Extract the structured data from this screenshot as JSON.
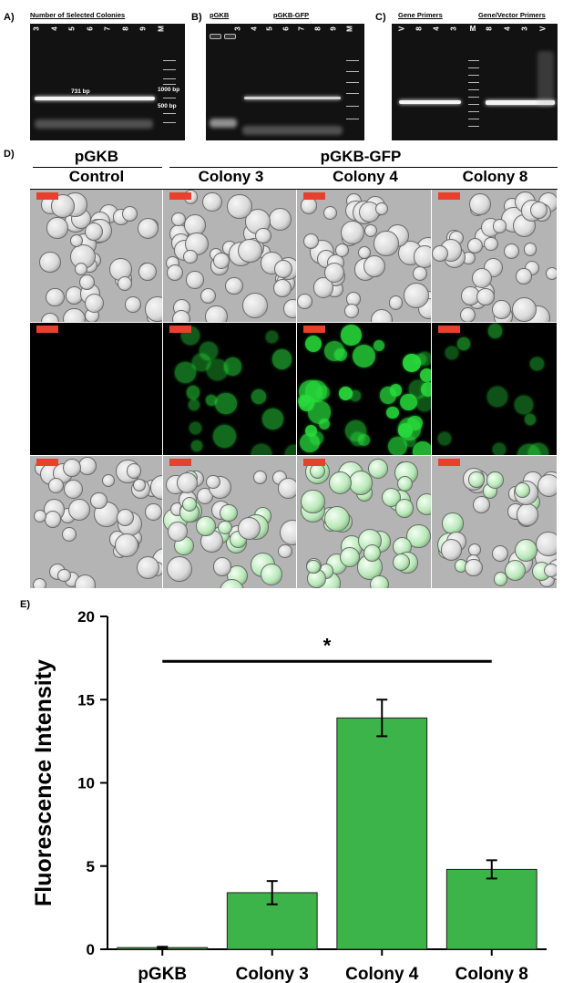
{
  "panel_a": {
    "label": "A)",
    "title": "Number of Selected Colonies",
    "lanes": [
      "3",
      "4",
      "5",
      "6",
      "7",
      "8",
      "9",
      "M"
    ],
    "band_label": "731 bp",
    "ladder_labels": [
      "1000 bp",
      "500 bp"
    ]
  },
  "panel_b": {
    "label": "B)",
    "group_left": "pGKB",
    "group_right": "pGKB-GFP",
    "lanes": [
      "3",
      "4",
      "5",
      "6",
      "7",
      "8",
      "9",
      "M"
    ]
  },
  "panel_c": {
    "label": "C)",
    "group_left": "Gene Primers",
    "group_right": "Gene/Vector Primers",
    "lanes_left": [
      "V",
      "8",
      "4",
      "3"
    ],
    "lane_marker": "M",
    "lanes_right": [
      "8",
      "4",
      "3",
      "V"
    ]
  },
  "panel_d": {
    "label": "D)",
    "header_left": "pGKB",
    "header_right": "pGKB-GFP",
    "columns": [
      "Control",
      "Colony 3",
      "Colony 4",
      "Colony 8"
    ],
    "rows": [
      "brightfield",
      "fluorescence",
      "merge"
    ],
    "scale_bar_color": "#e8402c"
  },
  "panel_e": {
    "label": "E)",
    "significance": "*"
  },
  "chart_data": {
    "type": "bar",
    "title": "",
    "xlabel": "",
    "ylabel": "Fluorescence Intensity",
    "categories": [
      "pGKB",
      "Colony 3",
      "Colony 4",
      "Colony 8"
    ],
    "values": [
      0.1,
      3.4,
      13.9,
      4.8
    ],
    "errors": [
      0.05,
      0.7,
      1.1,
      0.55
    ],
    "ylim": [
      0,
      20
    ],
    "yticks": [
      0,
      5,
      10,
      15,
      20
    ],
    "bar_color": "#3cb44a",
    "significance_marker": "*",
    "grid": false
  }
}
